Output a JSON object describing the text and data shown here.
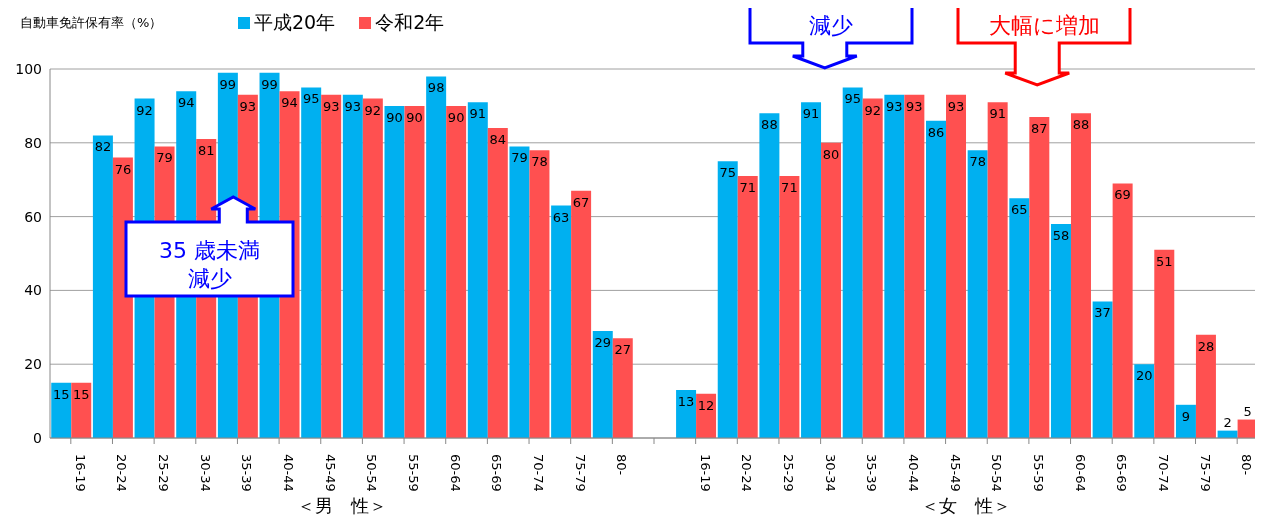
{
  "chart_data": {
    "type": "bar",
    "ylabel": "自動車免許保有率（%）",
    "categories": [
      "16-19",
      "20-24",
      "25-29",
      "30-34",
      "35-39",
      "40-44",
      "45-49",
      "50-54",
      "55-59",
      "60-64",
      "65-69",
      "70-74",
      "75-79",
      "80-",
      null,
      "16-19",
      "20-24",
      "25-29",
      "30-34",
      "35-39",
      "40-44",
      "45-49",
      "50-54",
      "55-59",
      "60-64",
      "65-69",
      "70-74",
      "75-79",
      "80-"
    ],
    "series": [
      {
        "name": "平成20年",
        "color": "#00b0f0",
        "values": [
          15,
          82,
          92,
          94,
          99,
          99,
          95,
          93,
          90,
          98,
          91,
          79,
          63,
          29,
          null,
          13,
          75,
          88,
          91,
          95,
          93,
          86,
          78,
          65,
          58,
          37,
          20,
          9,
          2
        ]
      },
      {
        "name": "令和2年",
        "color": "#ff5050",
        "values": [
          15,
          76,
          79,
          81,
          93,
          94,
          93,
          92,
          90,
          90,
          84,
          78,
          67,
          27,
          null,
          12,
          71,
          71,
          80,
          92,
          93,
          93,
          91,
          87,
          88,
          69,
          51,
          28,
          5
        ]
      }
    ],
    "ylim": [
      0,
      100
    ],
    "yticks": [
      0,
      20,
      40,
      60,
      80,
      100
    ],
    "grid": "y",
    "legend": "top",
    "data_labels": true,
    "annotations": [
      "＜男　性＞",
      "＜女　性＞",
      "35 歳未満",
      "減少",
      "減少",
      "大幅に増加"
    ]
  }
}
